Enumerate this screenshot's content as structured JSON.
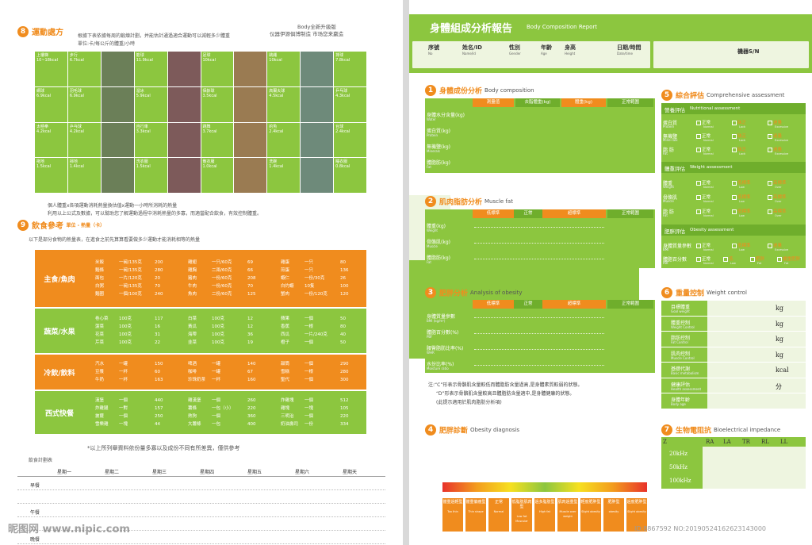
{
  "left": {
    "sec8": {
      "num": "8",
      "title": "運動處方",
      "desc1": "根據下表依據每周的鍛煉計劃，并能估計通過適合運動可以減輕多少體重",
      "desc2": "單位:卡/每公斤的體重/小時",
      "brand1": "Body全新升級版",
      "brand2": "仪器伊源俱博制造 市场您来赢造"
    },
    "exercises": [
      [
        "上樓梯",
        "10~18kcal"
      ],
      [
        "步行",
        "6.7kcal"
      ],
      [
        "",
        ""
      ],
      [
        "籃球",
        "11.9kcal"
      ],
      [
        "",
        ""
      ],
      [
        "足球",
        "10kcal"
      ],
      [
        "",
        ""
      ],
      [
        "跳繩",
        "10kcal"
      ],
      [
        "",
        ""
      ],
      [
        "排球",
        "7.8kcal"
      ],
      [
        "網球",
        "6.9kcal"
      ],
      [
        "羽毛球",
        "6.9kcal"
      ],
      [
        "",
        ""
      ],
      [
        "溜冰",
        "5.9kcal"
      ],
      [
        "",
        ""
      ],
      [
        "保齡球",
        "3.5kcal"
      ],
      [
        "",
        ""
      ],
      [
        "高爾夫球",
        "4.5kcal"
      ],
      [
        "",
        ""
      ],
      [
        "乒乓球",
        "4.3kcal"
      ],
      [
        "太極拳",
        "4.2kcal"
      ],
      [
        "乒乓球",
        "4.2kcal"
      ],
      [
        "",
        ""
      ],
      [
        "自行車",
        "3.3kcal"
      ],
      [
        "",
        ""
      ],
      [
        "跳舞",
        "3.7kcal"
      ],
      [
        "",
        ""
      ],
      [
        "釣魚",
        "2.4kcal"
      ],
      [
        "",
        ""
      ],
      [
        "台球",
        "2.4kcal"
      ],
      [
        "拖地",
        "1.5kcal"
      ],
      [
        "掃地",
        "1.4kcal"
      ],
      [
        "",
        ""
      ],
      [
        "洗衣服",
        "1.5kcal"
      ],
      [
        "",
        ""
      ],
      [
        "散衣服",
        "1.0kcal"
      ],
      [
        "",
        ""
      ],
      [
        "洗碗",
        "1.4kcal"
      ],
      [
        "",
        ""
      ],
      [
        "睡衣服",
        "0.8kcal"
      ]
    ],
    "note1": "個人體重x各項運動消耗熱量換估值x運動一小時所消耗的熱量",
    "note2": "利用以上公式及數據，可以幫助您了解運動過程中消耗熱量的多寡，而適當配合飲食，有效控制體重。",
    "sec9": {
      "num": "9",
      "title": "飲食參考",
      "unit": "單位 - 熱量（卡）",
      "desc": "以下是部分食物的熱量表，在進食之前先算算看要做多少運動才能消耗相等的熱量"
    },
    "food": [
      {
        "cat": "主食/魚肉",
        "cols": [
          [
            "米飯",
            "一碗/135克",
            "200"
          ],
          [
            "麵條",
            "一碗/135克",
            "280"
          ],
          [
            "面包",
            "一片/120克",
            "20"
          ],
          [
            "白粥",
            "一碗/135克",
            "70"
          ],
          [
            "麵圈",
            "一個/100克",
            "240"
          ],
          [
            "雞翅",
            "一只/60克",
            "69"
          ],
          [
            "雞胸",
            "二兩/60克",
            "66"
          ],
          [
            "豬肉",
            "一份/60克",
            "208"
          ],
          [
            "牛肉",
            "一份/60克",
            "70"
          ],
          [
            "魚肉",
            "二份/60克",
            "125"
          ],
          [
            "雞蛋",
            "一只",
            "80"
          ],
          [
            "煎蛋",
            "一只",
            "136"
          ],
          [
            "蝦仁",
            "一份/30克",
            "26"
          ],
          [
            "白灼蝦",
            "10隻",
            "100"
          ],
          [
            "蟹肉",
            "一份/120克",
            "120"
          ]
        ]
      },
      {
        "cat": "蔬菜/水果",
        "cols": [
          [
            "卷心菜",
            "100克",
            "117"
          ],
          [
            "菠菜",
            "100克",
            "16"
          ],
          [
            "花菜",
            "100克",
            "31"
          ],
          [
            "芹菜",
            "100克",
            "22"
          ],
          [
            "白菜",
            "100克",
            "12"
          ],
          [
            "黃瓜",
            "100克",
            "12"
          ],
          [
            "海帶",
            "100克",
            "36"
          ],
          [
            "韭菜",
            "100克",
            "19"
          ],
          [
            "蘋果",
            "一個",
            "50"
          ],
          [
            "香蕉",
            "一根",
            "80"
          ],
          [
            "西瓜",
            "一片/240克",
            "40"
          ],
          [
            "橙子",
            "一個",
            "50"
          ]
        ]
      },
      {
        "cat": "冷飲/飲料",
        "cols": [
          [
            "汽水",
            "一罐",
            "150"
          ],
          [
            "豆漿",
            "一杯",
            "60"
          ],
          [
            "牛奶",
            "一杯",
            "163"
          ],
          [
            "啤酒",
            "一罐",
            "140"
          ],
          [
            "咖啡",
            "一罐",
            "67"
          ],
          [
            "珍珠奶茶",
            "一杯",
            "160"
          ],
          [
            "甜筒",
            "一個",
            "290"
          ],
          [
            "雪糕",
            "一根",
            "280"
          ],
          [
            "聖代",
            "一個",
            "300"
          ]
        ]
      },
      {
        "cat": "西式快餐",
        "cols": [
          [
            "漢堡",
            "一個",
            "440"
          ],
          [
            "炸雞腿",
            "一對",
            "157"
          ],
          [
            "披薩",
            "一個",
            "250"
          ],
          [
            "雪樂雞",
            "一塊",
            "44"
          ],
          [
            "雞漢堡",
            "一個",
            "260"
          ],
          [
            "薯條",
            "一包（小）",
            "220"
          ],
          [
            "熱狗",
            "一個",
            "360"
          ],
          [
            "大薯條",
            "一包",
            "400"
          ],
          [
            "炸雞塊",
            "一個",
            "512"
          ],
          [
            "雞塊",
            "一塊",
            "105"
          ],
          [
            "三明治",
            "一個",
            "220"
          ],
          [
            "奶油壽司",
            "一份",
            "334"
          ]
        ]
      }
    ],
    "food_note": "*以上所列舉資料依份量多寡以及成份不同有所差異，僅供參考",
    "plan_title": "飲食計劃表",
    "days": [
      "星期一",
      "星期二",
      "星期三",
      "星期四",
      "星期五",
      "星期六",
      "星期天"
    ],
    "meals": [
      "早餐",
      "午餐",
      "晚餐"
    ]
  },
  "right": {
    "title_zh": "身體組成分析報告",
    "title_en": "Body Composition Report",
    "info": [
      [
        "序號",
        "No"
      ],
      [
        "姓名/ID",
        "Name/Id"
      ],
      [
        "性別",
        "Gender"
      ],
      [
        "年齡",
        "Age"
      ],
      [
        "身高",
        "Height"
      ],
      [
        "日期/時間",
        "Date/time"
      ]
    ],
    "machine": "機器S/N",
    "s1": {
      "num": "1",
      "title": "身體成份分析",
      "en": "Body  composition",
      "heads": [
        "測量值",
        "去脂體重(kg)",
        "體重(kg)",
        "正常範圍"
      ],
      "rows": [
        [
          "身體水分含量(kg)",
          "Water"
        ],
        [
          "蛋白質(kg)",
          "Protein"
        ],
        [
          "無機鹽(kg)",
          "Minerals"
        ],
        [
          "體脂肪(kg)",
          "Fat"
        ]
      ]
    },
    "s2": {
      "num": "2",
      "title": "肌肉脂肪分析",
      "en": "Muscle fat",
      "heads": [
        "低標準",
        "正常",
        "超標準",
        "正常範圍"
      ],
      "rows": [
        [
          "體重(kg)",
          "Weight"
        ],
        [
          "骨骼肌(kg)",
          "Muscle"
        ],
        [
          "體脂肪(kg)",
          "Fat"
        ]
      ]
    },
    "s3": {
      "num": "3",
      "title": "肥胖分析",
      "en": "Analysis of obesity",
      "heads": [
        "低標準",
        "正常",
        "超標準",
        "正常範圍"
      ],
      "rows": [
        [
          "身體質量參數",
          "BMI (kg/m²)"
        ],
        [
          "體脂百分數(%)",
          "PBF"
        ],
        [
          "腰臀脂肪比率(%)",
          "WHR"
        ],
        [
          "水份比率(%)",
          "Moisture ratio"
        ]
      ]
    },
    "s3note": [
      "注:“C”形表示骨骼肌含量較低而體脂肪含量過高,是身體素質較弱的狀態。",
      "“D”形表示骨骼肌含量較高且體脂肪含量適中,是身體健康的狀態。",
      "(此提示適用於肌肉脂肪分析項)"
    ],
    "s4": {
      "num": "4",
      "title": "肥胖診斷",
      "en": "Obesity diagnosis",
      "types": [
        [
          "體重過輕型",
          "Too thin"
        ],
        [
          "體重偏瘦型",
          "Thin shape"
        ],
        [
          "正常",
          "Normal"
        ],
        [
          "低脂肪肌肉型",
          "Low fat Muscular"
        ],
        [
          "過多脂肪型",
          "High fat"
        ],
        [
          "肌肉過重型",
          "Muscle over weight"
        ],
        [
          "輕度肥胖型",
          "Slight obesity"
        ],
        [
          "肥胖型",
          "obesity"
        ],
        [
          "過度肥胖型",
          "Slight obesity"
        ]
      ]
    },
    "s5": {
      "num": "5",
      "title": "綜合評估",
      "en": "Comprehensive assessment",
      "n_title": "營養評估",
      "n_en": "Nutritional assessment",
      "n_rows": [
        [
          "蛋白質",
          "Protein"
        ],
        [
          "無機鹽",
          "Mine-ralk"
        ],
        [
          "脂 肪",
          "Fat"
        ]
      ],
      "n_opts": [
        [
          "正常",
          "Normal"
        ],
        [
          "缺乏",
          "Lack"
        ],
        [
          "過量",
          "Excessive"
        ]
      ],
      "w_title": "體重評估",
      "w_en": "Weight assessment",
      "w_rows": [
        [
          "體重",
          "Weight"
        ],
        [
          "骨骼肌",
          "Muscle"
        ],
        [
          "脂 肪",
          "Fat"
        ]
      ],
      "w_opts": [
        [
          "正常",
          "Normal"
        ],
        [
          "低標準",
          "Low"
        ],
        [
          "高標準",
          "Over"
        ]
      ],
      "o_title": "肥胖評估",
      "o_en": "Obesity assessment",
      "o_rows": [
        [
          "身體質量參數",
          "BMI"
        ],
        [
          "體脂百分數",
          "PBF"
        ]
      ],
      "o1": [
        [
          "正常",
          "Normal"
        ],
        [
          "低標準",
          "Low"
        ],
        [
          "過量",
          "Excessive"
        ]
      ],
      "o2": [
        [
          "正常",
          "Normal"
        ],
        [
          "低",
          "Low"
        ],
        [
          "肥胖",
          "Fat"
        ],
        [
          "嚴重肥胖",
          "Fat"
        ]
      ]
    },
    "s6": {
      "num": "6",
      "title": "重量控制",
      "en": "Weight control",
      "rows": [
        [
          "目標體重",
          "Goal weight",
          "kg"
        ],
        [
          "體重控制",
          "Weight Control",
          "kg"
        ],
        [
          "脂肪控制",
          "Fat Control",
          "kg"
        ],
        [
          "肌肉控制",
          "Muscle Control",
          "kg"
        ],
        [
          "基礎代謝",
          "Basic metabolism",
          "kcal"
        ],
        [
          "健康評估",
          "Health assessment",
          "分"
        ],
        [
          "身體年齡",
          "Body age",
          ""
        ]
      ]
    },
    "s7": {
      "num": "7",
      "title": "生物電阻抗",
      "en": "Bioelectrical  impedance",
      "cols": [
        "Z",
        "RA",
        "LA",
        "TR",
        "RL",
        "LL"
      ],
      "rows": [
        "20kHz",
        "50kHz",
        "100kHz"
      ]
    }
  },
  "watermark": {
    "site": "昵图网 www.nipic.com",
    "id": "ID:8867592 NO:20190524162623143000"
  }
}
